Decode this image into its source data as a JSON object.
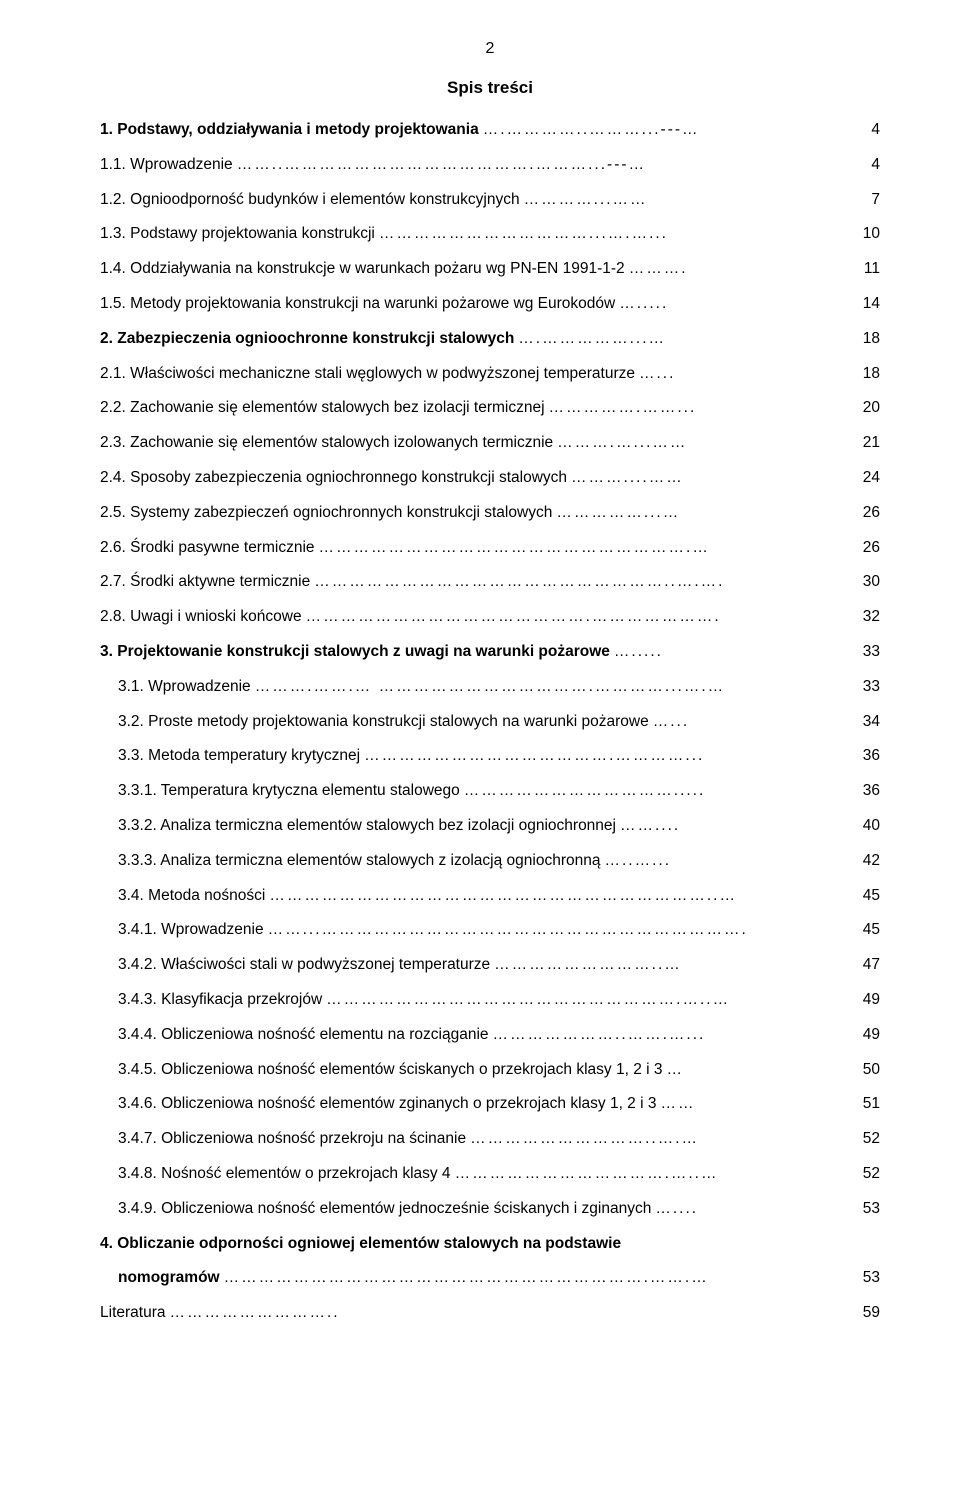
{
  "page_number": "2",
  "title": "Spis treści",
  "entries": [
    {
      "text": "1. Podstawy, oddziaływania i metody projektowania",
      "page": "4",
      "bold": true,
      "indent": 0,
      "dots": "….…………..………...---…"
    },
    {
      "text": "1.1. Wprowadzenie",
      "page": "4",
      "bold": false,
      "indent": 0,
      "dots": "……..…………………………………….………...---…"
    },
    {
      "text": "1.2. Ognioodporność budynków i elementów konstrukcyjnych",
      "page": "7",
      "bold": false,
      "indent": 0,
      "dots": "…………...……"
    },
    {
      "text": "1.3. Podstawy projektowania konstrukcji",
      "page": "10",
      "bold": false,
      "indent": 0,
      "dots": "………………………………...….…..."
    },
    {
      "text": "1.4. Oddziaływania na konstrukcje w warunkach pożaru wg PN-EN 1991-1-2",
      "page": "11",
      "bold": false,
      "indent": 0,
      "dots": "………."
    },
    {
      "text": "1.5. Metody projektowania konstrukcji na warunki pożarowe wg Eurokodów",
      "page": "14",
      "bold": false,
      "indent": 0,
      "dots": "…....."
    },
    {
      "text": "2. Zabezpieczenia ognioochronne konstrukcji stalowych",
      "page": "18",
      "bold": true,
      "indent": 0,
      "dots": "….……………...…"
    },
    {
      "text": "2.1. Właściwości mechaniczne stali węglowych w podwyższonej temperaturze",
      "page": "18",
      "bold": false,
      "indent": 0,
      "dots": "…..."
    },
    {
      "text": "2.2. Zachowanie się elementów stalowych bez izolacji termicznej",
      "page": "20",
      "bold": false,
      "indent": 0,
      "dots": "…………….……..."
    },
    {
      "text": "2.3. Zachowanie się elementów stalowych izolowanych termicznie",
      "page": "21",
      "bold": false,
      "indent": 0,
      "dots": "……….…...……"
    },
    {
      "text": "2.4. Sposoby zabezpieczenia ogniochronnego konstrukcji stalowych",
      "page": "24",
      "bold": false,
      "indent": 0,
      "dots": "………....……"
    },
    {
      "text": "2.5. Systemy zabezpieczeń ogniochronnych konstrukcji stalowych",
      "page": "26",
      "bold": false,
      "indent": 0,
      "dots": "……………...…"
    },
    {
      "text": "2.6. Środki pasywne termicznie",
      "page": "26",
      "bold": false,
      "indent": 0,
      "dots": "……………………………………………………….…"
    },
    {
      "text": "2.7. Środki aktywne termicznie",
      "page": "30",
      "bold": false,
      "indent": 0,
      "dots": "……………………………………………………..….…."
    },
    {
      "text": "2.8. Uwagi i wnioski końcowe",
      "page": "32",
      "bold": false,
      "indent": 0,
      "dots": "………………………………………….…………………."
    },
    {
      "text": "3. Projektowanie konstrukcji stalowych z uwagi na warunki pożarowe",
      "page": "33",
      "bold": true,
      "indent": 0,
      "dots": "…....."
    },
    {
      "text": "3.1. Wprowadzenie",
      "page": "33",
      "bold": false,
      "indent": 1,
      "dots": "……….…….…  ……………………………….…………...….…"
    },
    {
      "text": "3.2. Proste metody projektowania konstrukcji stalowych na warunki pożarowe",
      "page": "34",
      "bold": false,
      "indent": 1,
      "dots": "…..."
    },
    {
      "text": "3.3. Metoda temperatury krytycznej",
      "page": "36",
      "bold": false,
      "indent": 1,
      "dots": "…………………………………….…………..."
    },
    {
      "text": "3.3.1. Temperatura krytyczna elementu stalowego",
      "page": "36",
      "bold": false,
      "indent": 1,
      "dots": "………………………………....."
    },
    {
      "text": "3.3.2. Analiza termiczna elementów stalowych bez izolacji ogniochronnej",
      "page": "40",
      "bold": false,
      "indent": 1,
      "dots": "……...."
    },
    {
      "text": "3.3.3. Analiza termiczna elementów stalowych z izolacją ogniochronną",
      "page": "42",
      "bold": false,
      "indent": 1,
      "dots": "…..…..."
    },
    {
      "text": "3.4. Metoda nośności",
      "page": "45",
      "bold": false,
      "indent": 1,
      "dots": "…………………………………………………………………..…"
    },
    {
      "text": "3.4.1. Wprowadzenie",
      "page": "45",
      "bold": false,
      "indent": 1,
      "dots": "……...………………………………………………………………."
    },
    {
      "text": "3.4.2. Właściwości stali w podwyższonej temperaturze",
      "page": "47",
      "bold": false,
      "indent": 1,
      "dots": "………………………..…"
    },
    {
      "text": "3.4.3. Klasyfikacja przekrojów",
      "page": "49",
      "bold": false,
      "indent": 1,
      "dots": "…………………………………………………….…..…"
    },
    {
      "text": "3.4.4. Obliczeniowa nośność elementu na rozciąganie",
      "page": "49",
      "bold": false,
      "indent": 1,
      "dots": "…………………..…….…..."
    },
    {
      "text": "3.4.5. Obliczeniowa nośność elementów ściskanych o przekrojach klasy 1, 2 i 3",
      "page": "50",
      "bold": false,
      "indent": 1,
      "dots": "…"
    },
    {
      "text": "3.4.6. Obliczeniowa nośność elementów zginanych o przekrojach klasy 1, 2 i 3",
      "page": "51",
      "bold": false,
      "indent": 1,
      "dots": "……"
    },
    {
      "text": "3.4.7. Obliczeniowa nośność przekroju na ścinanie",
      "page": "52",
      "bold": false,
      "indent": 1,
      "dots": "…………………………..….…"
    },
    {
      "text": "3.4.8. Nośność elementów o przekrojach klasy 4",
      "page": "52",
      "bold": false,
      "indent": 1,
      "dots": "……………………………….…..…"
    },
    {
      "text": "3.4.9. Obliczeniowa nośność elementów jednocześnie ściskanych i zginanych",
      "page": "53",
      "bold": false,
      "indent": 1,
      "dots": "…...."
    },
    {
      "text": "4. Obliczanie odporności ogniowej elementów stalowych na podstawie",
      "page": "",
      "bold": true,
      "indent": 0,
      "dots": ""
    },
    {
      "text": "nomogramów",
      "page": "53",
      "bold": true,
      "indent": 2,
      "dots": "……………………………………………………………….…….…"
    },
    {
      "text": "Literatura",
      "page": "59",
      "bold": false,
      "indent": 0,
      "dots": "……………………….."
    }
  ],
  "colors": {
    "background": "#ffffff",
    "text": "#000000"
  }
}
